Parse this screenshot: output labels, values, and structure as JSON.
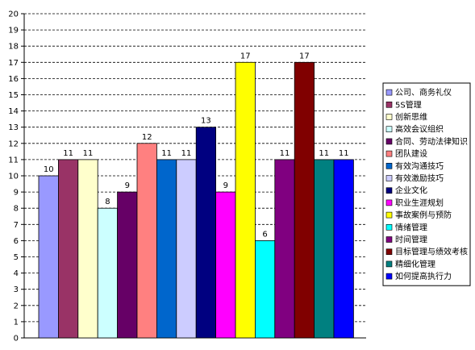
{
  "chart_data": {
    "type": "bar",
    "title": "",
    "xlabel": "",
    "ylabel": "",
    "ylim": [
      0,
      20
    ],
    "ytick_step": 1,
    "grid": true,
    "legend_position": "right",
    "bars": [
      {
        "name": "公司、商务礼仪",
        "value": 10,
        "color": "#9999FF"
      },
      {
        "name": "5S管理",
        "value": 11,
        "color": "#993366"
      },
      {
        "name": "创新思维",
        "value": 11,
        "color": "#FFFFCC"
      },
      {
        "name": "高效会议组织",
        "value": 8,
        "color": "#CCFFFF"
      },
      {
        "name": "合同、劳动法律知识",
        "value": 9,
        "color": "#660066"
      },
      {
        "name": "团队建设",
        "value": 12,
        "color": "#FF8080"
      },
      {
        "name": "有效沟通技巧",
        "value": 11,
        "color": "#0066CC"
      },
      {
        "name": "有效激励技巧",
        "value": 11,
        "color": "#CCCCFF"
      },
      {
        "name": "企业文化",
        "value": 13,
        "color": "#000080"
      },
      {
        "name": "职业生涯规划",
        "value": 9,
        "color": "#FF00FF"
      },
      {
        "name": "事故案例与预防",
        "value": 17,
        "color": "#FFFF00"
      },
      {
        "name": "情绪管理",
        "value": 6,
        "color": "#00FFFF"
      },
      {
        "name": "时间管理",
        "value": 11,
        "color": "#800080"
      },
      {
        "name": "目标管理与绩效考核",
        "value": 17,
        "color": "#800000"
      },
      {
        "name": "精细化管理",
        "value": 11,
        "color": "#008080"
      },
      {
        "name": "如何提高执行力",
        "value": 11,
        "color": "#0000FF"
      }
    ]
  }
}
